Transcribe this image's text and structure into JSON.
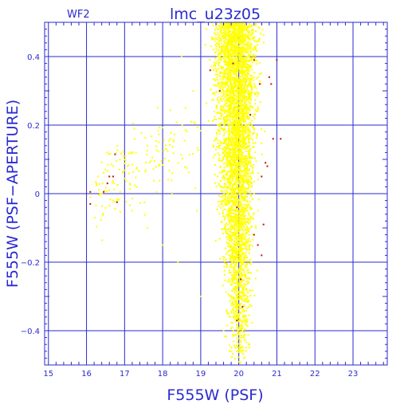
{
  "chart_data": {
    "type": "scatter",
    "title": "lmc_u23z05",
    "subtitle": "WF2",
    "xlabel": "F555W (PSF)",
    "ylabel": "F555W (PSF−APERTURE)",
    "xlim": [
      14.9,
      23.9
    ],
    "ylim": [
      -0.5,
      0.5
    ],
    "x_ticks": [
      15,
      16,
      17,
      18,
      19,
      20,
      21,
      22,
      23
    ],
    "x_tick_labels": [
      "15",
      "16",
      "17",
      "18",
      "19",
      "20",
      "21",
      "22",
      "23"
    ],
    "y_ticks": [
      -0.4,
      -0.2,
      0,
      0.2,
      0.4
    ],
    "y_tick_labels": [
      "−0.4",
      "−0.2",
      "0",
      "0.2",
      "0.4"
    ],
    "grid": true,
    "colors": {
      "axes": "#2a2ad0",
      "points": "#ffff00",
      "flagged": "#c81010",
      "background": "#ffffff"
    },
    "series": [
      {
        "color": "#ffff00",
        "description_points": [
          [
            19.15,
            0.48
          ],
          [
            19.3,
            0.45
          ],
          [
            19.45,
            0.4
          ],
          [
            19.6,
            0.35
          ],
          [
            19.75,
            0.3
          ],
          [
            19.9,
            0.25
          ],
          [
            20.0,
            0.2
          ],
          [
            20.1,
            0.15
          ],
          [
            20.2,
            0.1
          ],
          [
            20.3,
            0.05
          ],
          [
            20.4,
            0.0
          ],
          [
            20.5,
            -0.05
          ],
          [
            20.45,
            -0.1
          ],
          [
            20.3,
            -0.15
          ],
          [
            20.1,
            -0.2
          ],
          [
            19.9,
            -0.25
          ],
          [
            19.8,
            -0.3
          ],
          [
            19.7,
            -0.35
          ],
          [
            19.6,
            -0.4
          ],
          [
            19.9,
            -0.45
          ],
          [
            16.3,
            0.05
          ],
          [
            16.5,
            0.07
          ],
          [
            16.7,
            0.08
          ],
          [
            17.0,
            0.1
          ],
          [
            17.3,
            0.12
          ],
          [
            17.6,
            0.14
          ],
          [
            17.9,
            0.15
          ],
          [
            18.2,
            0.16
          ],
          [
            16.1,
            -0.01
          ],
          [
            16.4,
            0.0
          ],
          [
            16.8,
            -0.02
          ],
          [
            17.2,
            -0.05
          ],
          [
            17.6,
            -0.1
          ],
          [
            18.0,
            -0.15
          ],
          [
            18.4,
            -0.2
          ],
          [
            18.8,
            0.3
          ],
          [
            18.6,
            0.25
          ],
          [
            18.5,
            0.4
          ],
          [
            19.0,
            -0.3
          ],
          [
            18.9,
            -0.05
          ]
        ]
      },
      {
        "color": "#c81010",
        "description_points": [
          [
            16.1,
            0.005
          ],
          [
            16.1,
            -0.03
          ],
          [
            16.45,
            0.005
          ],
          [
            16.6,
            0.05
          ],
          [
            16.7,
            0.05
          ],
          [
            16.75,
            0.115
          ],
          [
            16.8,
            -0.025
          ],
          [
            16.55,
            0.03
          ],
          [
            19.85,
            0.38
          ],
          [
            20.4,
            0.39
          ],
          [
            20.55,
            0.32
          ],
          [
            20.8,
            0.34
          ],
          [
            20.85,
            0.32
          ],
          [
            21.0,
            0.39
          ],
          [
            20.9,
            0.16
          ],
          [
            21.1,
            0.16
          ],
          [
            20.6,
            0.05
          ],
          [
            20.75,
            0.08
          ],
          [
            20.7,
            0.09
          ],
          [
            20.5,
            -0.15
          ],
          [
            20.6,
            -0.18
          ],
          [
            19.95,
            -0.37
          ],
          [
            20.05,
            -0.25
          ],
          [
            20.1,
            -0.33
          ],
          [
            19.95,
            -0.04
          ],
          [
            20.4,
            -0.12
          ],
          [
            19.5,
            0.3
          ],
          [
            19.25,
            0.36
          ],
          [
            20.65,
            -0.09
          ],
          [
            20.3,
            0.23
          ]
        ]
      }
    ]
  }
}
